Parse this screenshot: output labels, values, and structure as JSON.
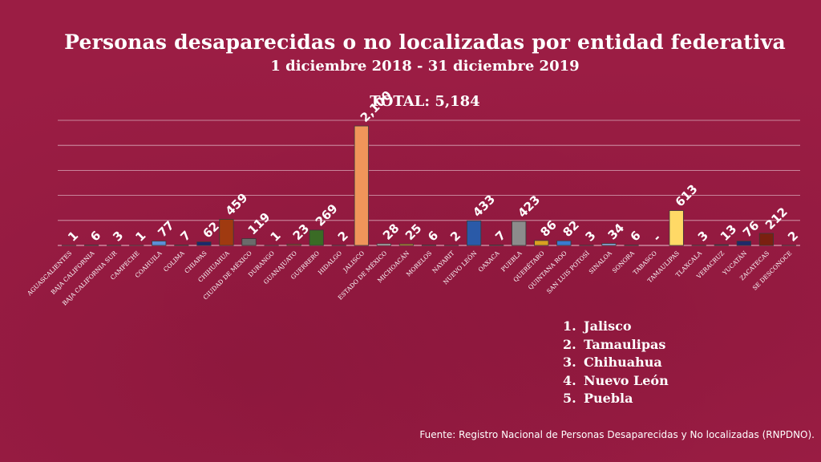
{
  "chart_data": {
    "type": "bar",
    "title": "Personas desaparecidas o no localizadas por entidad federativa",
    "subtitle": "1 diciembre 2018 -  31 diciembre 2019",
    "total_label": "TOTAL: 5,184",
    "categories": [
      "AGUASCALIENTES",
      "BAJA CALIFORNIA",
      "BAJA CALIFORNIA SUR",
      "CAMPECHE",
      "COAHUILA",
      "COLIMA",
      "CHIAPAS",
      "CHIHUAHUA",
      "CIUDAD DE MÉXICO",
      "DURANGO",
      "GUANAJUATO",
      "GUERRERO",
      "HIDALGO",
      "JALISCO",
      "ESTADO DE MÉXICO",
      "MICHOACÁN",
      "MORELOS",
      "NAYARIT",
      "NUEVO LEÓN",
      "OAXACA",
      "PUEBLA",
      "QUERÉTARO",
      "QUINTANA ROO",
      "SAN LUIS POTOSÍ",
      "SINALOA",
      "SONORA",
      "TABASCO",
      "TAMAULIPAS",
      "TLAXCALA",
      "VERACRUZ",
      "YUCATÁN",
      "ZACATECAS",
      "SE DESCONOCE"
    ],
    "values": [
      1,
      6,
      3,
      1,
      77,
      7,
      62,
      459,
      119,
      1,
      23,
      269,
      2,
      2100,
      28,
      25,
      6,
      2,
      433,
      7,
      423,
      86,
      82,
      3,
      34,
      6,
      0,
      613,
      3,
      13,
      76,
      212,
      2
    ],
    "value_labels": [
      "1",
      "6",
      "3",
      "1",
      "77",
      "7",
      "62",
      "459",
      "119",
      "1",
      "23",
      "269",
      "2",
      "2,100",
      "28",
      "25",
      "6",
      "2",
      "433",
      "7",
      "423",
      "86",
      "82",
      "3",
      "34",
      "6",
      "-",
      "613",
      "3",
      "13",
      "76",
      "212",
      "2"
    ],
    "bar_colors": [
      "#2f6fd0",
      "#c0c0c0",
      "#c0c0c0",
      "#7a1010",
      "#5b8fd6",
      "#7a1010",
      "#1a2a6e",
      "#a03a10",
      "#6b6b6b",
      "#1f1f2e",
      "#c0392b",
      "#3a6b25",
      "#9b1d44",
      "#f0955a",
      "#d0d0d0",
      "#e0a030",
      "#9b1d44",
      "#9b1d44",
      "#2a5aa8",
      "#2a6ab0",
      "#8c8c8c",
      "#d9a020",
      "#3a7ad0",
      "#c0c0c0",
      "#8aa8d8",
      "#c0c0c0",
      "#9b1d44",
      "#ffd966",
      "#c0c0c0",
      "#2a3a8a",
      "#1f2a6a",
      "#7a2010",
      "#c0c0c0"
    ],
    "ylim": [
      0,
      2200
    ],
    "grid": true,
    "xlabel": "",
    "ylabel": ""
  },
  "ranking": [
    {
      "num": "1.",
      "name": "Jalisco"
    },
    {
      "num": "2.",
      "name": "Tamaulipas"
    },
    {
      "num": "3.",
      "name": "Chihuahua"
    },
    {
      "num": "4.",
      "name": "Nuevo León"
    },
    {
      "num": "5.",
      "name": "Puebla"
    }
  ],
  "source": "Fuente: Registro Nacional de Personas Desaparecidas y No localizadas (RNPDNO)."
}
